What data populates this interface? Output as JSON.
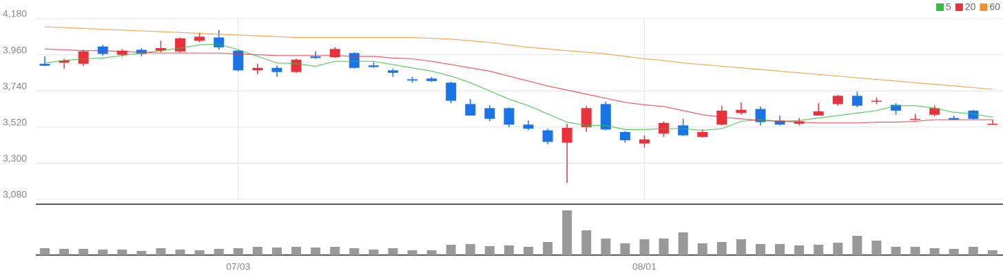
{
  "chart_data": {
    "type": "candlestick",
    "categories": [
      null,
      null,
      null,
      null,
      null,
      null,
      null,
      null,
      null,
      null,
      "07/03",
      null,
      null,
      null,
      null,
      null,
      null,
      null,
      null,
      null,
      null,
      null,
      null,
      null,
      null,
      null,
      null,
      null,
      null,
      null,
      null,
      "08/01",
      null,
      null,
      null,
      null,
      null,
      null,
      null,
      null,
      null,
      null,
      null,
      null,
      null,
      null,
      null,
      null,
      null,
      null
    ],
    "open": [
      3905,
      3912,
      3905,
      4010,
      3960,
      3990,
      3985,
      3980,
      4045,
      4065,
      3985,
      3865,
      3880,
      3855,
      3950,
      3945,
      3970,
      3895,
      3865,
      3810,
      3815,
      3790,
      3660,
      3635,
      3635,
      3535,
      3500,
      3425,
      3520,
      3660,
      3490,
      3420,
      3480,
      3530,
      3460,
      3535,
      3605,
      3630,
      3560,
      3540,
      3590,
      3660,
      3710,
      3675,
      3655,
      3565,
      3595,
      3575,
      3620,
      3535
    ],
    "high": [
      3950,
      3935,
      3990,
      4020,
      3995,
      4000,
      4045,
      4065,
      4095,
      4110,
      3990,
      3905,
      3895,
      3935,
      3980,
      4005,
      3975,
      3915,
      3875,
      3825,
      3825,
      3795,
      3690,
      3655,
      3640,
      3560,
      3510,
      3540,
      3650,
      3675,
      3495,
      3470,
      3555,
      3570,
      3505,
      3650,
      3670,
      3645,
      3590,
      3575,
      3665,
      3715,
      3735,
      3700,
      3665,
      3600,
      3650,
      3590,
      3625,
      3565
    ],
    "low": [
      3890,
      3875,
      3890,
      3955,
      3950,
      3950,
      3975,
      3975,
      4035,
      3990,
      3860,
      3840,
      3825,
      3850,
      3935,
      3940,
      3875,
      3880,
      3825,
      3790,
      3795,
      3665,
      3590,
      3555,
      3520,
      3500,
      3415,
      3180,
      3490,
      3500,
      3425,
      3395,
      3460,
      3465,
      3455,
      3530,
      3595,
      3530,
      3530,
      3530,
      3590,
      3650,
      3640,
      3660,
      3595,
      3560,
      3585,
      3560,
      3565,
      3535
    ],
    "close": [
      3893,
      3925,
      3980,
      3965,
      3985,
      3965,
      4000,
      4060,
      4070,
      4005,
      3865,
      3880,
      3855,
      3930,
      3940,
      3995,
      3880,
      3885,
      3850,
      3803,
      3800,
      3680,
      3590,
      3570,
      3535,
      3510,
      3430,
      3515,
      3635,
      3505,
      3440,
      3445,
      3545,
      3470,
      3490,
      3620,
      3625,
      3550,
      3535,
      3555,
      3615,
      3710,
      3650,
      3680,
      3620,
      3570,
      3635,
      3565,
      3570,
      3540
    ],
    "up_color": "#e8313b",
    "down_color": "#1a74e8",
    "series": [
      {
        "name": "5",
        "color": "#2fc03a",
        "values": [
          3910,
          3925,
          3935,
          3940,
          3955,
          3970,
          3985,
          4000,
          4020,
          4025,
          3990,
          3950,
          3910,
          3905,
          3890,
          3920,
          3920,
          3920,
          3900,
          3880,
          3860,
          3830,
          3790,
          3740,
          3690,
          3650,
          3600,
          3550,
          3530,
          3530,
          3505,
          3505,
          3510,
          3510,
          3500,
          3510,
          3555,
          3565,
          3555,
          3560,
          3575,
          3590,
          3605,
          3620,
          3650,
          3650,
          3635,
          3610,
          3600,
          3580
        ]
      },
      {
        "name": "20",
        "color": "#e8313b",
        "values": [
          3995,
          3990,
          3985,
          3985,
          3980,
          3975,
          3970,
          3970,
          3970,
          3970,
          3965,
          3960,
          3955,
          3955,
          3955,
          3955,
          3950,
          3950,
          3940,
          3935,
          3920,
          3900,
          3880,
          3860,
          3830,
          3800,
          3770,
          3745,
          3720,
          3695,
          3670,
          3655,
          3645,
          3620,
          3595,
          3580,
          3570,
          3560,
          3555,
          3550,
          3545,
          3545,
          3545,
          3550,
          3550,
          3555,
          3565,
          3565,
          3565,
          3565
        ]
      },
      {
        "name": "60",
        "color": "#f0922b",
        "values": [
          4130,
          4125,
          4120,
          4115,
          4110,
          4105,
          4100,
          4095,
          4090,
          4085,
          4080,
          4075,
          4070,
          4065,
          4065,
          4065,
          4065,
          4065,
          4065,
          4065,
          4060,
          4055,
          4045,
          4035,
          4020,
          4005,
          3995,
          3985,
          3975,
          3965,
          3950,
          3935,
          3925,
          3910,
          3900,
          3890,
          3880,
          3870,
          3860,
          3850,
          3840,
          3830,
          3820,
          3810,
          3800,
          3790,
          3780,
          3770,
          3760,
          3750
        ]
      }
    ],
    "ylim": [
      3080,
      4180
    ],
    "yticks": [
      {
        "value": 3080,
        "label": "3,080"
      },
      {
        "value": 3300,
        "label": "3,300"
      },
      {
        "value": 3520,
        "label": "3,520"
      },
      {
        "value": 3740,
        "label": "3,740"
      },
      {
        "value": 3960,
        "label": "3,960"
      },
      {
        "value": 4180,
        "label": "4,180"
      }
    ],
    "grid": true,
    "volume": {
      "color": "#999999",
      "ylim": [
        0,
        74
      ],
      "values": [
        10,
        9,
        9,
        8,
        8,
        6,
        10,
        8,
        7,
        9,
        10,
        12,
        11,
        12,
        11,
        12,
        10,
        8,
        10,
        7,
        7,
        15,
        16,
        13,
        14,
        12,
        19,
        65,
        36,
        24,
        17,
        23,
        24,
        33,
        17,
        19,
        23,
        16,
        16,
        14,
        15,
        18,
        28,
        21,
        12,
        12,
        10,
        9,
        12,
        7
      ]
    }
  }
}
